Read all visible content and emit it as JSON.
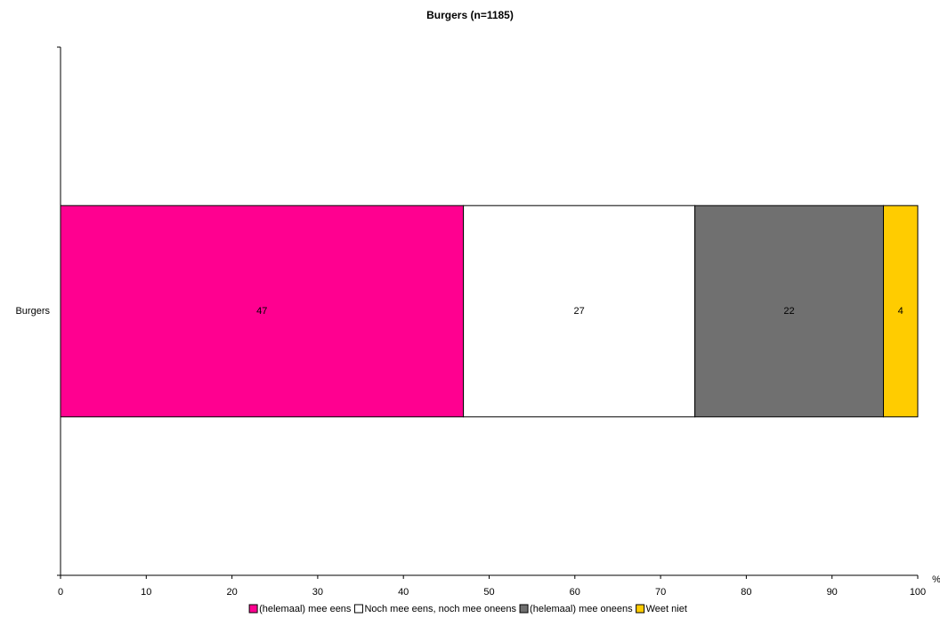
{
  "chart_data": {
    "type": "stacked-barh",
    "title": "Burgers (n=1185)",
    "x_label": "%",
    "categories": [
      "Burgers"
    ],
    "series": [
      {
        "name": "(helemaal) mee eens",
        "color": "#ff0090",
        "values": [
          47
        ]
      },
      {
        "name": "Noch mee eens, noch mee oneens",
        "color": "#ffffff",
        "values": [
          27
        ]
      },
      {
        "name": "(helemaal) mee oneens",
        "color": "#707070",
        "values": [
          22
        ]
      },
      {
        "name": "Weet niet",
        "color": "#ffcc00",
        "values": [
          4
        ]
      }
    ],
    "xlim": [
      0,
      100
    ],
    "xticks": [
      0,
      10,
      20,
      30,
      40,
      50,
      60,
      70,
      80,
      90,
      100
    ]
  }
}
